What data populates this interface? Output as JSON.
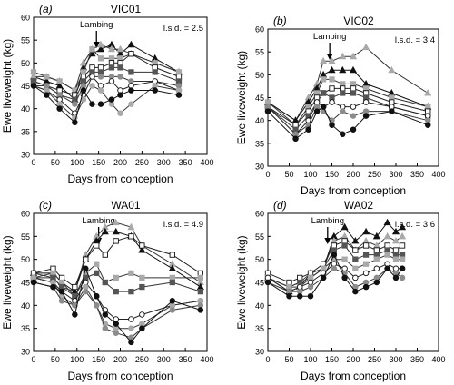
{
  "colors": {
    "black": "#111111",
    "dark_grey": "#555555",
    "mid_grey": "#8c8c8c",
    "light_grey": "#a9a9a9",
    "white": "#ffffff"
  },
  "chart_data": [
    {
      "type": "line",
      "panel": "(a)",
      "title": "VIC01",
      "lsd": "l.s.d. = 2.5",
      "annotation": "Lambing",
      "lambing_day": 145,
      "xlabel": "Days from conception",
      "ylabel": "Ewe liveweight (kg)",
      "xlim": [
        0,
        400
      ],
      "ylim": [
        30,
        60
      ],
      "xticks": [
        0,
        50,
        100,
        150,
        200,
        250,
        300,
        350,
        400
      ],
      "yticks": [
        30,
        35,
        40,
        45,
        50,
        55,
        60
      ],
      "x": [
        0,
        30,
        60,
        95,
        115,
        135,
        155,
        180,
        200,
        225,
        280,
        335
      ],
      "series": [
        {
          "marker": "triangle",
          "color": "black",
          "values": [
            47,
            46,
            45,
            42,
            49,
            52,
            53,
            54,
            52,
            54,
            51,
            48
          ]
        },
        {
          "marker": "triangle",
          "color": "light_grey",
          "values": [
            47,
            47,
            46,
            44,
            50,
            53,
            54,
            53,
            53,
            52,
            50,
            48
          ]
        },
        {
          "marker": "square",
          "color": "light_grey",
          "values": [
            48,
            47,
            46,
            44,
            48,
            53,
            51,
            51,
            51,
            52,
            50,
            48
          ]
        },
        {
          "marker": "square",
          "color": "white",
          "values": [
            46,
            45,
            44,
            43,
            47,
            49,
            49,
            50,
            50,
            52,
            49,
            47
          ]
        },
        {
          "marker": "square",
          "color": "dark_grey",
          "values": [
            46,
            45,
            43,
            42,
            46,
            48,
            48,
            49,
            49,
            48,
            48,
            46
          ]
        },
        {
          "marker": "circle",
          "color": "mid_grey",
          "values": [
            45,
            45,
            43,
            41,
            45,
            47,
            47,
            47,
            47,
            46,
            46,
            45
          ]
        },
        {
          "marker": "circle",
          "color": "white",
          "values": [
            45,
            44,
            42,
            39,
            43,
            47,
            45,
            46,
            44,
            45,
            46,
            44
          ]
        },
        {
          "marker": "circle",
          "color": "light_grey",
          "values": [
            45,
            44,
            41,
            38,
            42,
            45,
            44,
            41,
            39,
            41,
            45,
            44
          ]
        },
        {
          "marker": "circle",
          "color": "black",
          "values": [
            45,
            43,
            40,
            37,
            44,
            41,
            41,
            42,
            43,
            44,
            44,
            43
          ]
        }
      ]
    },
    {
      "type": "line",
      "panel": "(b)",
      "title": "VIC02",
      "lsd": "l.s.d. = 3.4",
      "annotation": "Lambing",
      "lambing_day": 145,
      "xlabel": "Days from conception",
      "ylabel": "Ewe liveweight (kg)",
      "xlim": [
        0,
        400
      ],
      "ylim": [
        30,
        60
      ],
      "xticks": [
        0,
        50,
        100,
        150,
        200,
        250,
        300,
        350,
        400
      ],
      "yticks": [
        30,
        35,
        40,
        45,
        50,
        55,
        60
      ],
      "x": [
        0,
        65,
        95,
        115,
        130,
        150,
        175,
        200,
        230,
        290,
        375
      ],
      "series": [
        {
          "marker": "triangle",
          "color": "light_grey",
          "values": [
            44,
            40,
            45,
            48,
            53,
            53,
            54,
            54,
            56,
            51,
            46
          ]
        },
        {
          "marker": "triangle",
          "color": "black",
          "values": [
            44,
            40,
            44,
            47,
            50,
            51,
            51,
            51,
            48,
            46,
            43
          ]
        },
        {
          "marker": "square",
          "color": "light_grey",
          "values": [
            44,
            39,
            43,
            46,
            49,
            49,
            48,
            48,
            47,
            45,
            43
          ]
        },
        {
          "marker": "square",
          "color": "white",
          "values": [
            43,
            39,
            42,
            45,
            46,
            47,
            47,
            47,
            46,
            44,
            42
          ]
        },
        {
          "marker": "square",
          "color": "dark_grey",
          "values": [
            43,
            38,
            41,
            44,
            46,
            45,
            46,
            46,
            45,
            43,
            41
          ]
        },
        {
          "marker": "circle",
          "color": "white",
          "values": [
            43,
            37,
            40,
            44,
            43,
            44,
            43,
            43,
            44,
            43,
            41
          ]
        },
        {
          "marker": "circle",
          "color": "mid_grey",
          "values": [
            43,
            37,
            39,
            43,
            42,
            40,
            42,
            41,
            42,
            42,
            40
          ]
        },
        {
          "marker": "circle",
          "color": "black",
          "values": [
            42,
            36,
            38,
            42,
            43,
            39,
            37,
            38,
            41,
            42,
            39
          ]
        }
      ]
    },
    {
      "type": "line",
      "panel": "(c)",
      "title": "WA01",
      "lsd": "l.s.d. = 4.9",
      "annotation": "Lambing",
      "lambing_day": 150,
      "xlabel": "Days from conception",
      "ylabel": "Ewe liveweight (kg)",
      "xlim": [
        0,
        400
      ],
      "ylim": [
        30,
        60
      ],
      "xticks": [
        0,
        50,
        100,
        150,
        200,
        250,
        300,
        350,
        400
      ],
      "yticks": [
        30,
        35,
        40,
        45,
        50,
        55,
        60
      ],
      "x": [
        0,
        45,
        65,
        95,
        120,
        145,
        165,
        190,
        225,
        250,
        320,
        385
      ],
      "series": [
        {
          "marker": "triangle",
          "color": "light_grey",
          "values": [
            47,
            46,
            44,
            43,
            51,
            55,
            57,
            58,
            57,
            53,
            49,
            45
          ]
        },
        {
          "marker": "triangle",
          "color": "black",
          "values": [
            47,
            47,
            45,
            43,
            50,
            54,
            56,
            56,
            55,
            52,
            48,
            44
          ]
        },
        {
          "marker": "square",
          "color": "white",
          "values": [
            47,
            48,
            46,
            44,
            50,
            53,
            51,
            54,
            55,
            53,
            51,
            47
          ]
        },
        {
          "marker": "square",
          "color": "light_grey",
          "values": [
            46,
            47,
            45,
            42,
            47,
            49,
            45,
            46,
            47,
            46,
            46,
            46
          ]
        },
        {
          "marker": "square",
          "color": "dark_grey",
          "values": [
            46,
            46,
            44,
            42,
            46,
            47,
            45,
            43,
            43,
            44,
            45,
            43
          ]
        },
        {
          "marker": "circle",
          "color": "white",
          "values": [
            46,
            45,
            43,
            41,
            45,
            42,
            39,
            37,
            37,
            38,
            40,
            41
          ]
        },
        {
          "marker": "circle",
          "color": "light_grey",
          "values": [
            46,
            45,
            42,
            40,
            44,
            40,
            36,
            35,
            35,
            36,
            40,
            41
          ]
        },
        {
          "marker": "circle",
          "color": "mid_grey",
          "values": [
            45,
            44,
            41,
            40,
            43,
            40,
            35,
            34,
            33,
            35,
            39,
            40
          ]
        },
        {
          "marker": "circle",
          "color": "black",
          "values": [
            45,
            44,
            43,
            38,
            48,
            42,
            38,
            36,
            32,
            35,
            41,
            39
          ]
        }
      ]
    },
    {
      "type": "line",
      "panel": "(d)",
      "title": "WA02",
      "lsd": "l.s.d. = 3.6",
      "annotation": "Lambing",
      "lambing_day": 140,
      "xlabel": "Days from conception",
      "ylabel": "Ewe liveweight (kg)",
      "xlim": [
        0,
        400
      ],
      "ylim": [
        30,
        60
      ],
      "xticks": [
        0,
        50,
        100,
        150,
        200,
        250,
        300,
        350,
        400
      ],
      "yticks": [
        30,
        35,
        40,
        45,
        50,
        55,
        60
      ],
      "x": [
        0,
        50,
        75,
        100,
        130,
        155,
        180,
        205,
        230,
        255,
        280,
        300,
        315
      ],
      "series": [
        {
          "marker": "triangle",
          "color": "black",
          "values": [
            46,
            43,
            44,
            47,
            48,
            55,
            57,
            54,
            56,
            55,
            58,
            56,
            57
          ]
        },
        {
          "marker": "triangle",
          "color": "light_grey",
          "values": [
            46,
            44,
            45,
            47,
            48,
            54,
            55,
            52,
            54,
            53,
            55,
            54,
            55
          ]
        },
        {
          "marker": "square",
          "color": "white",
          "values": [
            47,
            45,
            46,
            47,
            49,
            53,
            54,
            52,
            53,
            52,
            53,
            52,
            53
          ]
        },
        {
          "marker": "square",
          "color": "dark_grey",
          "values": [
            46,
            44,
            45,
            46,
            48,
            52,
            53,
            50,
            51,
            51,
            52,
            51,
            51
          ]
        },
        {
          "marker": "square",
          "color": "light_grey",
          "values": [
            46,
            44,
            44,
            46,
            48,
            50,
            50,
            48,
            49,
            50,
            51,
            50,
            50
          ]
        },
        {
          "marker": "circle",
          "color": "white",
          "values": [
            46,
            43,
            44,
            45,
            47,
            49,
            48,
            46,
            47,
            48,
            49,
            48,
            48
          ]
        },
        {
          "marker": "circle",
          "color": "mid_grey",
          "values": [
            45,
            43,
            43,
            44,
            46,
            48,
            47,
            44,
            45,
            46,
            48,
            47,
            46
          ]
        },
        {
          "marker": "circle",
          "color": "black",
          "values": [
            45,
            42,
            42,
            42,
            46,
            51,
            46,
            43,
            44,
            45,
            48,
            46,
            48
          ]
        }
      ]
    }
  ]
}
